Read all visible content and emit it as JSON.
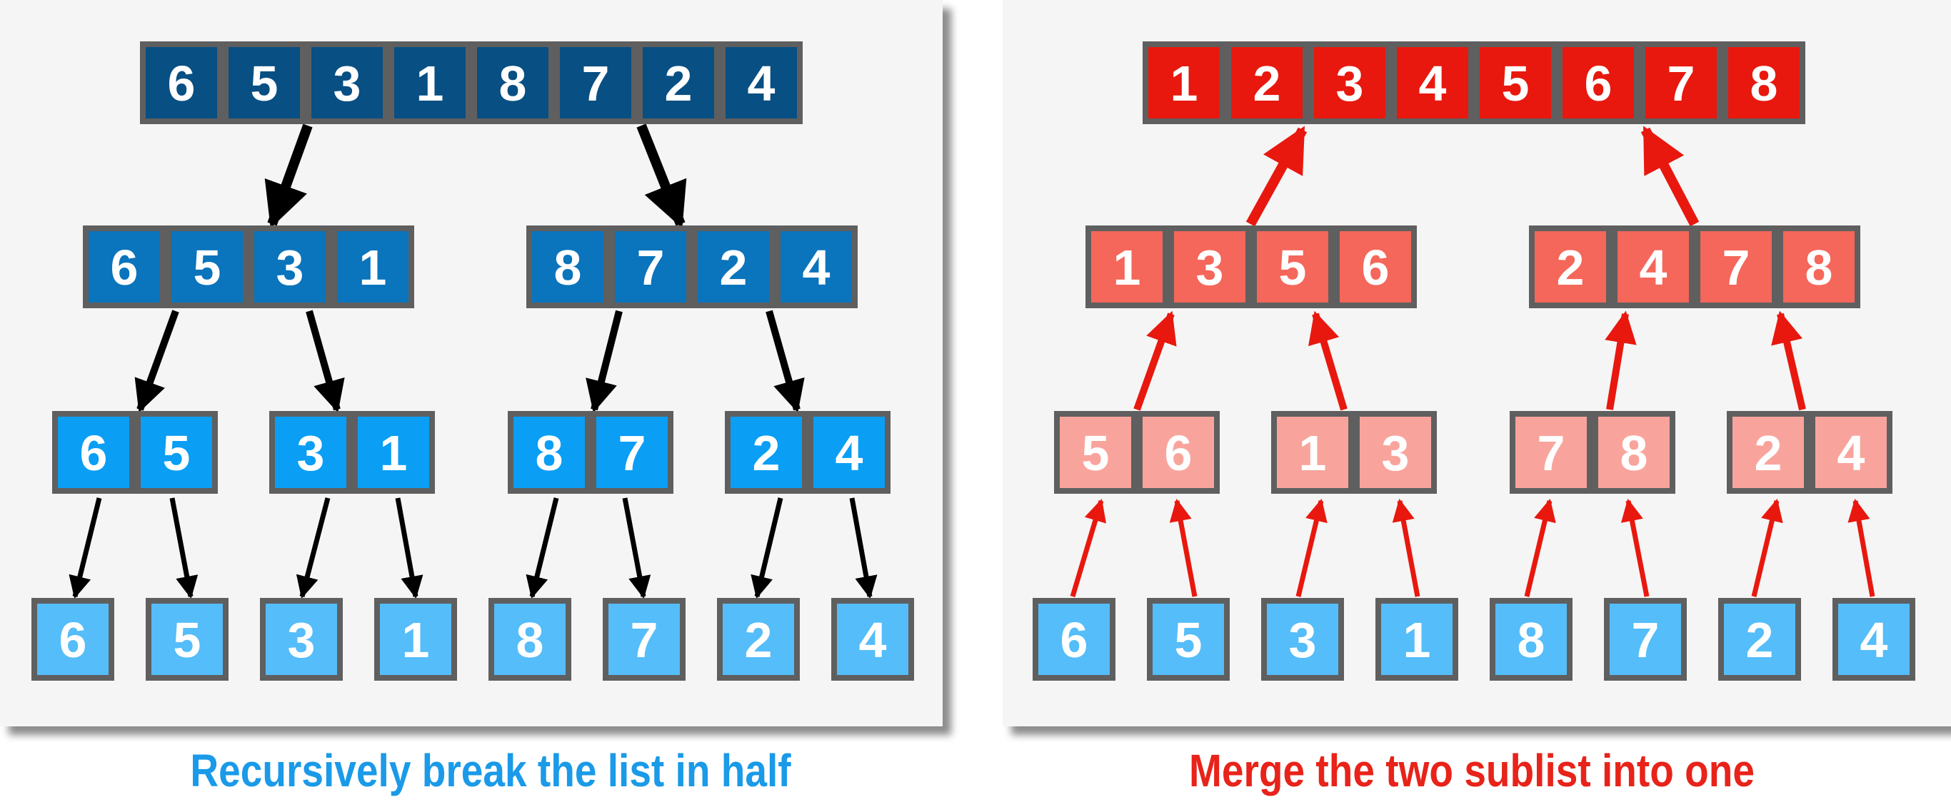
{
  "colors": {
    "border": "#5f5f5f",
    "level0": "#084f83",
    "level1": "#0a74bc",
    "level2": "#0a9ef4",
    "level3": "#55bdf9",
    "merge_top": "#e8180e",
    "merge_mid": "#f4675a",
    "merge_low": "#f8a49c",
    "split_arrow": "#000000",
    "merge_arrow": "#e8180e"
  },
  "split": {
    "level0": [
      [
        "6",
        "5",
        "3",
        "1",
        "8",
        "7",
        "2",
        "4"
      ]
    ],
    "level1": [
      [
        "6",
        "5",
        "3",
        "1"
      ],
      [
        "8",
        "7",
        "2",
        "4"
      ]
    ],
    "level2": [
      [
        "6",
        "5"
      ],
      [
        "3",
        "1"
      ],
      [
        "8",
        "7"
      ],
      [
        "2",
        "4"
      ]
    ],
    "level3": [
      [
        "6"
      ],
      [
        "5"
      ],
      [
        "3"
      ],
      [
        "1"
      ],
      [
        "8"
      ],
      [
        "7"
      ],
      [
        "2"
      ],
      [
        "4"
      ]
    ],
    "caption": "Recursively break the list in half"
  },
  "merge": {
    "level0": [
      [
        "6"
      ],
      [
        "5"
      ],
      [
        "3"
      ],
      [
        "1"
      ],
      [
        "8"
      ],
      [
        "7"
      ],
      [
        "2"
      ],
      [
        "4"
      ]
    ],
    "level1": [
      [
        "5",
        "6"
      ],
      [
        "1",
        "3"
      ],
      [
        "7",
        "8"
      ],
      [
        "2",
        "4"
      ]
    ],
    "level2": [
      [
        "1",
        "3",
        "5",
        "6"
      ],
      [
        "2",
        "4",
        "7",
        "8"
      ]
    ],
    "level3": [
      [
        "1",
        "2",
        "3",
        "4",
        "5",
        "6",
        "7",
        "8"
      ]
    ],
    "caption": "Merge the two sublist into one"
  }
}
